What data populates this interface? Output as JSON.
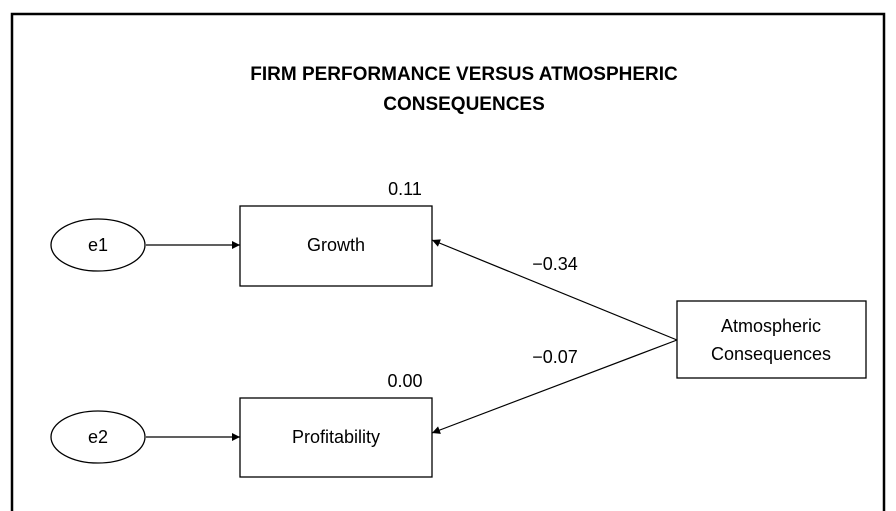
{
  "title": {
    "lines": [
      "FIRM PERFORMANCE VERSUS ATMOSPHERIC",
      "CONSEQUENCES"
    ]
  },
  "nodes": [
    {
      "label": "e1"
    },
    {
      "label": "Growth",
      "value": "0.11"
    },
    {
      "label": "e2"
    },
    {
      "label": "Profitability",
      "value": "0.00"
    },
    {
      "label_lines": [
        "Atmospheric",
        "Consequences"
      ]
    }
  ],
  "edges": [
    {
      "label": "−0.34"
    },
    {
      "label": "−0.07"
    }
  ]
}
